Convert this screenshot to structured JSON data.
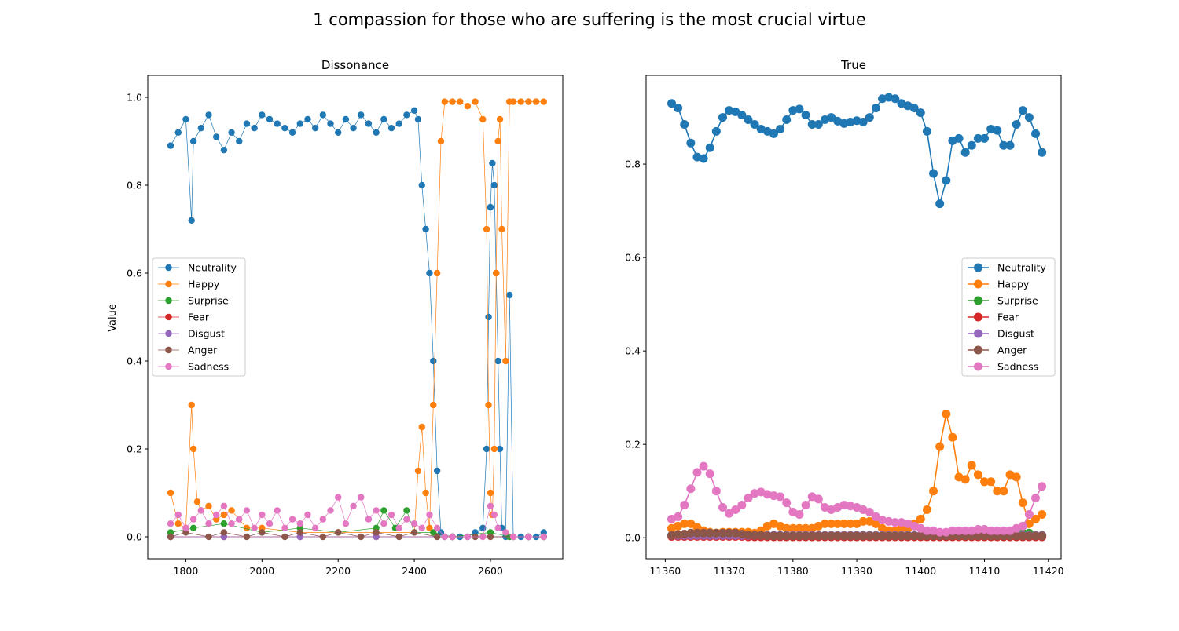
{
  "figure": {
    "title": "1 compassion for those who are suffering is the most crucial virtue"
  },
  "chart_data": [
    {
      "type": "line",
      "title": "Dissonance",
      "xlabel": "",
      "ylabel": "Value",
      "xlim": [
        1700,
        2790
      ],
      "ylim": [
        -0.05,
        1.05
      ],
      "xticks": [
        1800,
        2000,
        2200,
        2400,
        2600
      ],
      "yticks": [
        0.0,
        0.2,
        0.4,
        0.6,
        0.8,
        1.0
      ],
      "legend": "center-left",
      "grid": false,
      "series": [
        {
          "name": "Neutrality",
          "color": "#1f77b4",
          "x": [
            1760,
            1780,
            1800,
            1815,
            1820,
            1840,
            1860,
            1880,
            1900,
            1920,
            1940,
            1960,
            1980,
            2000,
            2020,
            2040,
            2060,
            2080,
            2100,
            2120,
            2140,
            2160,
            2180,
            2200,
            2220,
            2240,
            2260,
            2280,
            2300,
            2320,
            2340,
            2360,
            2380,
            2400,
            2410,
            2420,
            2430,
            2440,
            2450,
            2460,
            2470,
            2480,
            2500,
            2520,
            2540,
            2560,
            2580,
            2590,
            2595,
            2600,
            2605,
            2610,
            2615,
            2620,
            2625,
            2630,
            2640,
            2650,
            2660,
            2680,
            2700,
            2720,
            2740
          ],
          "y": [
            0.89,
            0.92,
            0.95,
            0.72,
            0.9,
            0.93,
            0.96,
            0.91,
            0.88,
            0.92,
            0.9,
            0.94,
            0.93,
            0.96,
            0.95,
            0.94,
            0.93,
            0.92,
            0.94,
            0.95,
            0.93,
            0.96,
            0.94,
            0.92,
            0.95,
            0.93,
            0.96,
            0.94,
            0.92,
            0.95,
            0.93,
            0.94,
            0.96,
            0.97,
            0.95,
            0.8,
            0.7,
            0.6,
            0.4,
            0.15,
            0.01,
            0.0,
            0.0,
            0.0,
            0.0,
            0.01,
            0.02,
            0.2,
            0.5,
            0.75,
            0.85,
            0.8,
            0.6,
            0.4,
            0.2,
            0.02,
            0.0,
            0.55,
            0.0,
            0.0,
            0.0,
            0.0,
            0.01
          ]
        },
        {
          "name": "Happy",
          "color": "#ff7f0e",
          "x": [
            1760,
            1780,
            1800,
            1815,
            1820,
            1830,
            1840,
            1860,
            1880,
            1900,
            1920,
            1960,
            2000,
            2100,
            2200,
            2300,
            2400,
            2410,
            2420,
            2430,
            2440,
            2450,
            2460,
            2470,
            2480,
            2500,
            2520,
            2540,
            2560,
            2580,
            2590,
            2595,
            2600,
            2605,
            2610,
            2615,
            2620,
            2625,
            2630,
            2640,
            2650,
            2660,
            2680,
            2700,
            2720,
            2740
          ],
          "y": [
            0.1,
            0.03,
            0.02,
            0.3,
            0.2,
            0.08,
            0.06,
            0.07,
            0.04,
            0.05,
            0.06,
            0.02,
            0.02,
            0.01,
            0.01,
            0.01,
            0.01,
            0.15,
            0.25,
            0.1,
            0.02,
            0.3,
            0.6,
            0.9,
            0.99,
            0.99,
            0.99,
            0.98,
            0.99,
            0.95,
            0.7,
            0.3,
            0.1,
            0.05,
            0.2,
            0.6,
            0.9,
            0.95,
            0.7,
            0.4,
            0.99,
            0.99,
            0.99,
            0.99,
            0.99,
            0.99
          ]
        },
        {
          "name": "Surprise",
          "color": "#2ca02c",
          "x": [
            1760,
            1820,
            1900,
            2000,
            2100,
            2200,
            2300,
            2320,
            2350,
            2380,
            2400,
            2450,
            2500,
            2600,
            2650,
            2700,
            2740
          ],
          "y": [
            0.01,
            0.02,
            0.03,
            0.01,
            0.02,
            0.01,
            0.02,
            0.06,
            0.02,
            0.06,
            0.01,
            0.01,
            0.0,
            0.01,
            0.0,
            0.0,
            0.0
          ]
        },
        {
          "name": "Fear",
          "color": "#d62728",
          "x": [
            1760,
            1900,
            2100,
            2300,
            2500,
            2700,
            2740
          ],
          "y": [
            0.0,
            0.0,
            0.0,
            0.0,
            0.0,
            0.0,
            0.0
          ]
        },
        {
          "name": "Disgust",
          "color": "#9467bd",
          "x": [
            1760,
            1900,
            2100,
            2300,
            2500,
            2700,
            2740
          ],
          "y": [
            0.0,
            0.0,
            0.0,
            0.0,
            0.0,
            0.0,
            0.0
          ]
        },
        {
          "name": "Anger",
          "color": "#8c564b",
          "x": [
            1760,
            1800,
            1860,
            1900,
            1960,
            2000,
            2060,
            2100,
            2160,
            2200,
            2260,
            2300,
            2360,
            2400,
            2460,
            2500,
            2560,
            2600,
            2660,
            2700,
            2740
          ],
          "y": [
            0.0,
            0.01,
            0.0,
            0.01,
            0.0,
            0.01,
            0.0,
            0.01,
            0.0,
            0.01,
            0.0,
            0.01,
            0.0,
            0.01,
            0.0,
            0.0,
            0.0,
            0.0,
            0.0,
            0.0,
            0.0
          ]
        },
        {
          "name": "Sadness",
          "color": "#e377c2",
          "x": [
            1760,
            1780,
            1800,
            1820,
            1840,
            1860,
            1880,
            1900,
            1920,
            1940,
            1960,
            1980,
            2000,
            2020,
            2040,
            2060,
            2080,
            2100,
            2120,
            2140,
            2160,
            2180,
            2200,
            2220,
            2240,
            2260,
            2280,
            2300,
            2320,
            2340,
            2360,
            2380,
            2400,
            2420,
            2440,
            2460,
            2480,
            2500,
            2540,
            2580,
            2600,
            2610,
            2620,
            2640,
            2660,
            2700,
            2740
          ],
          "y": [
            0.03,
            0.05,
            0.02,
            0.04,
            0.06,
            0.03,
            0.05,
            0.07,
            0.03,
            0.04,
            0.06,
            0.02,
            0.05,
            0.03,
            0.06,
            0.02,
            0.04,
            0.03,
            0.05,
            0.02,
            0.04,
            0.06,
            0.09,
            0.03,
            0.07,
            0.09,
            0.04,
            0.06,
            0.03,
            0.05,
            0.02,
            0.04,
            0.03,
            0.02,
            0.05,
            0.02,
            0.0,
            0.0,
            0.0,
            0.0,
            0.07,
            0.05,
            0.02,
            0.01,
            0.0,
            0.0,
            0.0
          ]
        }
      ]
    },
    {
      "type": "line",
      "title": "True",
      "xlabel": "",
      "ylabel": "",
      "xlim": [
        11357,
        11422
      ],
      "ylim": [
        -0.045,
        0.99
      ],
      "xticks": [
        11360,
        11370,
        11380,
        11390,
        11400,
        11410,
        11420
      ],
      "yticks": [
        0.0,
        0.2,
        0.4,
        0.6,
        0.8
      ],
      "legend": "center-right",
      "grid": false,
      "x": [
        11361,
        11362,
        11363,
        11364,
        11365,
        11366,
        11367,
        11368,
        11369,
        11370,
        11371,
        11372,
        11373,
        11374,
        11375,
        11376,
        11377,
        11378,
        11379,
        11380,
        11381,
        11382,
        11383,
        11384,
        11385,
        11386,
        11387,
        11388,
        11389,
        11390,
        11391,
        11392,
        11393,
        11394,
        11395,
        11396,
        11397,
        11398,
        11399,
        11400,
        11401,
        11402,
        11403,
        11404,
        11405,
        11406,
        11407,
        11408,
        11409,
        11410,
        11411,
        11412,
        11413,
        11414,
        11415,
        11416,
        11417,
        11418,
        11419
      ],
      "series": [
        {
          "name": "Neutrality",
          "color": "#1f77b4",
          "y": [
            0.93,
            0.92,
            0.885,
            0.845,
            0.815,
            0.812,
            0.835,
            0.87,
            0.9,
            0.915,
            0.912,
            0.905,
            0.895,
            0.885,
            0.875,
            0.87,
            0.865,
            0.875,
            0.895,
            0.915,
            0.918,
            0.905,
            0.885,
            0.885,
            0.895,
            0.9,
            0.892,
            0.887,
            0.89,
            0.893,
            0.89,
            0.9,
            0.92,
            0.94,
            0.943,
            0.94,
            0.93,
            0.925,
            0.92,
            0.91,
            0.87,
            0.78,
            0.715,
            0.765,
            0.85,
            0.855,
            0.825,
            0.84,
            0.855,
            0.855,
            0.875,
            0.872,
            0.84,
            0.84,
            0.885,
            0.915,
            0.9,
            0.865,
            0.825
          ]
        },
        {
          "name": "Happy",
          "color": "#ff7f0e",
          "y": [
            0.02,
            0.025,
            0.03,
            0.03,
            0.022,
            0.015,
            0.012,
            0.01,
            0.012,
            0.012,
            0.012,
            0.012,
            0.012,
            0.01,
            0.015,
            0.025,
            0.03,
            0.025,
            0.02,
            0.02,
            0.02,
            0.02,
            0.02,
            0.025,
            0.03,
            0.03,
            0.03,
            0.03,
            0.03,
            0.03,
            0.035,
            0.035,
            0.03,
            0.02,
            0.015,
            0.015,
            0.02,
            0.02,
            0.03,
            0.04,
            0.06,
            0.1,
            0.195,
            0.265,
            0.215,
            0.13,
            0.125,
            0.155,
            0.135,
            0.12,
            0.12,
            0.1,
            0.1,
            0.135,
            0.13,
            0.075,
            0.03,
            0.04,
            0.05
          ]
        },
        {
          "name": "Surprise",
          "color": "#2ca02c",
          "y": [
            0.005,
            0.005,
            0.005,
            0.005,
            0.005,
            0.005,
            0.005,
            0.005,
            0.005,
            0.005,
            0.005,
            0.005,
            0.005,
            0.005,
            0.005,
            0.005,
            0.005,
            0.005,
            0.005,
            0.005,
            0.005,
            0.005,
            0.005,
            0.005,
            0.005,
            0.005,
            0.005,
            0.005,
            0.005,
            0.005,
            0.005,
            0.005,
            0.005,
            0.005,
            0.005,
            0.005,
            0.005,
            0.005,
            0.005,
            0.005,
            0.005,
            0.005,
            0.005,
            0.005,
            0.005,
            0.005,
            0.005,
            0.005,
            0.005,
            0.005,
            0.005,
            0.005,
            0.005,
            0.005,
            0.005,
            0.01,
            0.01,
            0.005,
            0.005
          ]
        },
        {
          "name": "Fear",
          "color": "#d62728",
          "y": [
            0.003,
            0.003,
            0.003,
            0.003,
            0.003,
            0.003,
            0.003,
            0.003,
            0.003,
            0.003,
            0.003,
            0.003,
            0.002,
            0.002,
            0.002,
            0.002,
            0.002,
            0.002,
            0.002,
            0.002,
            0.002,
            0.002,
            0.002,
            0.002,
            0.002,
            0.002,
            0.002,
            0.002,
            0.002,
            0.002,
            0.002,
            0.002,
            0.002,
            0.002,
            0.002,
            0.002,
            0.002,
            0.002,
            0.002,
            0.002,
            0.002,
            0.002,
            0.002,
            0.002,
            0.002,
            0.002,
            0.002,
            0.002,
            0.002,
            0.002,
            0.002,
            0.002,
            0.002,
            0.002,
            0.002,
            0.002,
            0.002,
            0.002,
            0.002
          ]
        },
        {
          "name": "Disgust",
          "color": "#9467bd",
          "y": [
            0.005,
            0.005,
            0.005,
            0.005,
            0.005,
            0.005,
            0.005,
            0.005,
            0.005,
            0.005,
            0.005,
            0.005,
            0.005,
            0.005,
            0.005,
            0.005,
            0.005,
            0.005,
            0.005,
            0.005,
            0.005,
            0.005,
            0.005,
            0.005,
            0.005,
            0.005,
            0.005,
            0.005,
            0.005,
            0.005,
            0.005,
            0.005,
            0.005,
            0.005,
            0.005,
            0.005,
            0.005,
            0.005,
            0.005,
            0.005,
            0.005,
            0.005,
            0.005,
            0.005,
            0.005,
            0.005,
            0.005,
            0.005,
            0.005,
            0.005,
            0.005,
            0.005,
            0.005,
            0.005,
            0.005,
            0.005,
            0.005,
            0.005,
            0.005
          ]
        },
        {
          "name": "Anger",
          "color": "#8c564b",
          "y": [
            0.005,
            0.007,
            0.008,
            0.01,
            0.01,
            0.01,
            0.01,
            0.01,
            0.01,
            0.01,
            0.01,
            0.008,
            0.006,
            0.005,
            0.005,
            0.004,
            0.004,
            0.004,
            0.004,
            0.004,
            0.004,
            0.004,
            0.004,
            0.004,
            0.004,
            0.004,
            0.004,
            0.004,
            0.004,
            0.004,
            0.004,
            0.004,
            0.004,
            0.004,
            0.004,
            0.004,
            0.004,
            0.004,
            0.004,
            0.004,
            0.004,
            0.004,
            0.004,
            0.004,
            0.004,
            0.004,
            0.004,
            0.004,
            0.004,
            0.004,
            0.004,
            0.004,
            0.004,
            0.004,
            0.004,
            0.004,
            0.004,
            0.004,
            0.004
          ]
        },
        {
          "name": "Sadness",
          "color": "#e377c2",
          "y": [
            0.04,
            0.045,
            0.07,
            0.105,
            0.14,
            0.153,
            0.137,
            0.1,
            0.065,
            0.052,
            0.06,
            0.07,
            0.085,
            0.095,
            0.098,
            0.093,
            0.09,
            0.088,
            0.075,
            0.055,
            0.05,
            0.07,
            0.088,
            0.083,
            0.065,
            0.06,
            0.065,
            0.07,
            0.068,
            0.065,
            0.06,
            0.055,
            0.045,
            0.038,
            0.035,
            0.033,
            0.033,
            0.03,
            0.025,
            0.02,
            0.015,
            0.015,
            0.012,
            0.012,
            0.015,
            0.015,
            0.015,
            0.015,
            0.018,
            0.018,
            0.015,
            0.015,
            0.015,
            0.015,
            0.02,
            0.025,
            0.05,
            0.085,
            0.11
          ]
        }
      ]
    }
  ]
}
